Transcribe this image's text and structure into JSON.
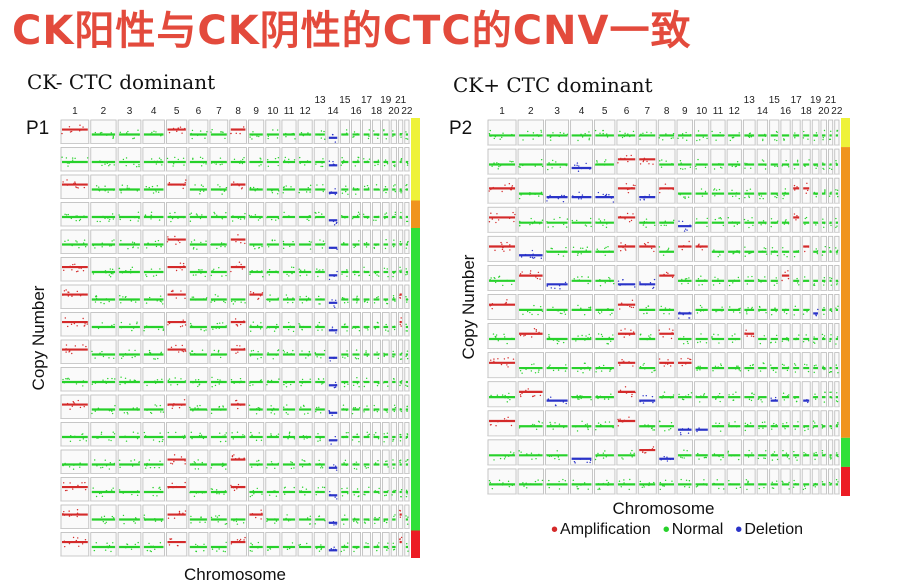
{
  "title": "CK阳性与CK阴性的CTC的CNV一致",
  "panels": [
    {
      "id": "left",
      "heading": "CK- CTC dominant",
      "patient": "P1",
      "xlabel": "Chromosome",
      "ylabel": "Copy Number",
      "rows": 16,
      "bar_segments": [
        {
          "rows": 3,
          "color": "#eef23a"
        },
        {
          "rows": 1,
          "color": "#f0941e"
        },
        {
          "rows": 11,
          "color": "#2fe03a"
        },
        {
          "rows": 1,
          "color": "#ec1c24"
        }
      ]
    },
    {
      "id": "right",
      "heading": "CK+ CTC dominant",
      "patient": "P2",
      "xlabel": "Chromosome",
      "ylabel": "Copy Number",
      "rows": 13,
      "bar_segments": [
        {
          "rows": 1,
          "color": "#eef23a"
        },
        {
          "rows": 10,
          "color": "#f0941e"
        },
        {
          "rows": 1,
          "color": "#2fe03a"
        },
        {
          "rows": 1,
          "color": "#ec1c24"
        }
      ]
    }
  ],
  "chromosomes": [
    "1",
    "2",
    "3",
    "4",
    "5",
    "6",
    "7",
    "8",
    "9",
    "10",
    "11",
    "12",
    "13",
    "14",
    "15",
    "16",
    "17",
    "18",
    "19",
    "20",
    "21",
    "22"
  ],
  "legend": [
    {
      "label": "Amplification",
      "color": "#d42a2a"
    },
    {
      "label": "Normal",
      "color": "#27d12b"
    },
    {
      "label": "Deletion",
      "color": "#2a33c8"
    }
  ],
  "colors": {
    "title": "#e34a3c",
    "amplification": "#d42a2a",
    "normal": "#27d12b",
    "deletion": "#2a33c8"
  }
}
